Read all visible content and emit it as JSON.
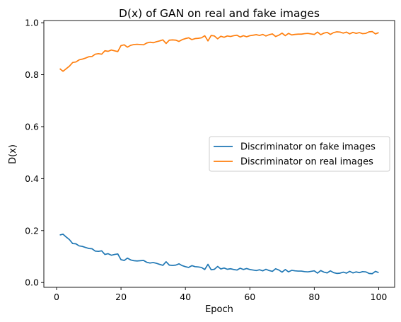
{
  "chart_data": {
    "type": "line",
    "title": "D(x) of GAN on real and fake images",
    "xlabel": "Epoch",
    "ylabel": "D(x)",
    "xlim": [
      -3.95,
      104.95
    ],
    "ylim": [
      -0.0185,
      1.0085
    ],
    "xticks": [
      0,
      20,
      40,
      60,
      80,
      100
    ],
    "yticks": [
      0.0,
      0.2,
      0.4,
      0.6,
      0.8,
      1.0
    ],
    "xtick_labels": [
      "0",
      "20",
      "40",
      "60",
      "80",
      "100"
    ],
    "ytick_labels": [
      "0.0",
      "0.2",
      "0.4",
      "0.6",
      "0.8",
      "1.0"
    ],
    "grid": false,
    "legend_position": "center-right",
    "x": [
      1,
      2,
      3,
      4,
      5,
      6,
      7,
      8,
      9,
      10,
      11,
      12,
      13,
      14,
      15,
      16,
      17,
      18,
      19,
      20,
      21,
      22,
      23,
      24,
      25,
      26,
      27,
      28,
      29,
      30,
      31,
      32,
      33,
      34,
      35,
      36,
      37,
      38,
      39,
      40,
      41,
      42,
      43,
      44,
      45,
      46,
      47,
      48,
      49,
      50,
      51,
      52,
      53,
      54,
      55,
      56,
      57,
      58,
      59,
      60,
      61,
      62,
      63,
      64,
      65,
      66,
      67,
      68,
      69,
      70,
      71,
      72,
      73,
      74,
      75,
      76,
      77,
      78,
      79,
      80,
      81,
      82,
      83,
      84,
      85,
      86,
      87,
      88,
      89,
      90,
      91,
      92,
      93,
      94,
      95,
      96,
      97,
      98,
      99,
      100
    ],
    "series": [
      {
        "name": "Discriminator on fake images",
        "color": "#1f77b4",
        "values": [
          0.183,
          0.186,
          0.175,
          0.165,
          0.15,
          0.149,
          0.141,
          0.139,
          0.135,
          0.131,
          0.13,
          0.121,
          0.12,
          0.122,
          0.108,
          0.111,
          0.105,
          0.108,
          0.11,
          0.088,
          0.085,
          0.094,
          0.087,
          0.084,
          0.083,
          0.084,
          0.085,
          0.078,
          0.075,
          0.077,
          0.074,
          0.07,
          0.066,
          0.08,
          0.067,
          0.066,
          0.067,
          0.072,
          0.065,
          0.061,
          0.058,
          0.065,
          0.061,
          0.06,
          0.058,
          0.05,
          0.07,
          0.049,
          0.051,
          0.062,
          0.052,
          0.056,
          0.051,
          0.053,
          0.05,
          0.048,
          0.055,
          0.05,
          0.054,
          0.05,
          0.048,
          0.046,
          0.049,
          0.045,
          0.051,
          0.046,
          0.043,
          0.053,
          0.048,
          0.04,
          0.05,
          0.041,
          0.047,
          0.045,
          0.044,
          0.044,
          0.042,
          0.041,
          0.043,
          0.045,
          0.036,
          0.046,
          0.04,
          0.037,
          0.045,
          0.038,
          0.035,
          0.036,
          0.04,
          0.036,
          0.043,
          0.037,
          0.041,
          0.038,
          0.042,
          0.041,
          0.035,
          0.034,
          0.043,
          0.038
        ]
      },
      {
        "name": "Discriminator on real images",
        "color": "#ff7f0e",
        "values": [
          0.823,
          0.813,
          0.823,
          0.833,
          0.847,
          0.849,
          0.857,
          0.86,
          0.864,
          0.869,
          0.87,
          0.879,
          0.881,
          0.879,
          0.892,
          0.89,
          0.895,
          0.892,
          0.889,
          0.912,
          0.915,
          0.906,
          0.913,
          0.916,
          0.917,
          0.916,
          0.915,
          0.922,
          0.925,
          0.923,
          0.927,
          0.93,
          0.934,
          0.92,
          0.933,
          0.934,
          0.933,
          0.928,
          0.935,
          0.939,
          0.942,
          0.935,
          0.939,
          0.94,
          0.942,
          0.95,
          0.93,
          0.951,
          0.949,
          0.938,
          0.948,
          0.944,
          0.949,
          0.947,
          0.95,
          0.952,
          0.945,
          0.95,
          0.946,
          0.95,
          0.952,
          0.954,
          0.951,
          0.955,
          0.949,
          0.954,
          0.957,
          0.947,
          0.952,
          0.96,
          0.95,
          0.959,
          0.953,
          0.955,
          0.956,
          0.956,
          0.958,
          0.959,
          0.957,
          0.955,
          0.964,
          0.954,
          0.96,
          0.963,
          0.955,
          0.962,
          0.965,
          0.964,
          0.96,
          0.964,
          0.957,
          0.963,
          0.959,
          0.962,
          0.958,
          0.959,
          0.965,
          0.966,
          0.957,
          0.962
        ]
      }
    ]
  }
}
